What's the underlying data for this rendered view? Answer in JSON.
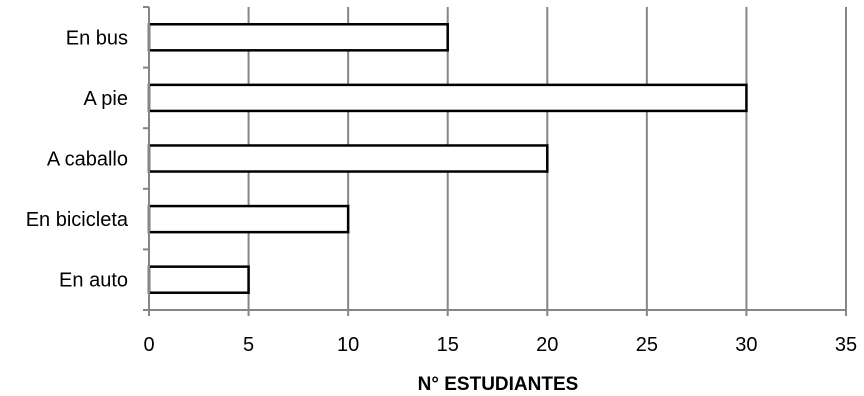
{
  "chart_data": {
    "type": "bar",
    "orientation": "horizontal",
    "categories": [
      "En auto",
      "En bicicleta",
      "A caballo",
      "A pie",
      "En bus"
    ],
    "values": [
      5,
      10,
      20,
      30,
      15
    ],
    "title": "",
    "xlabel": "N° ESTUDIANTES",
    "ylabel": "",
    "xlim": [
      0,
      35
    ],
    "xticks": [
      0,
      5,
      10,
      15,
      20,
      25,
      30,
      35
    ],
    "grid": "vertical",
    "legend": "none",
    "bar_fill": "#ffffff",
    "bar_stroke": "#000000",
    "grid_color": "#868686"
  }
}
